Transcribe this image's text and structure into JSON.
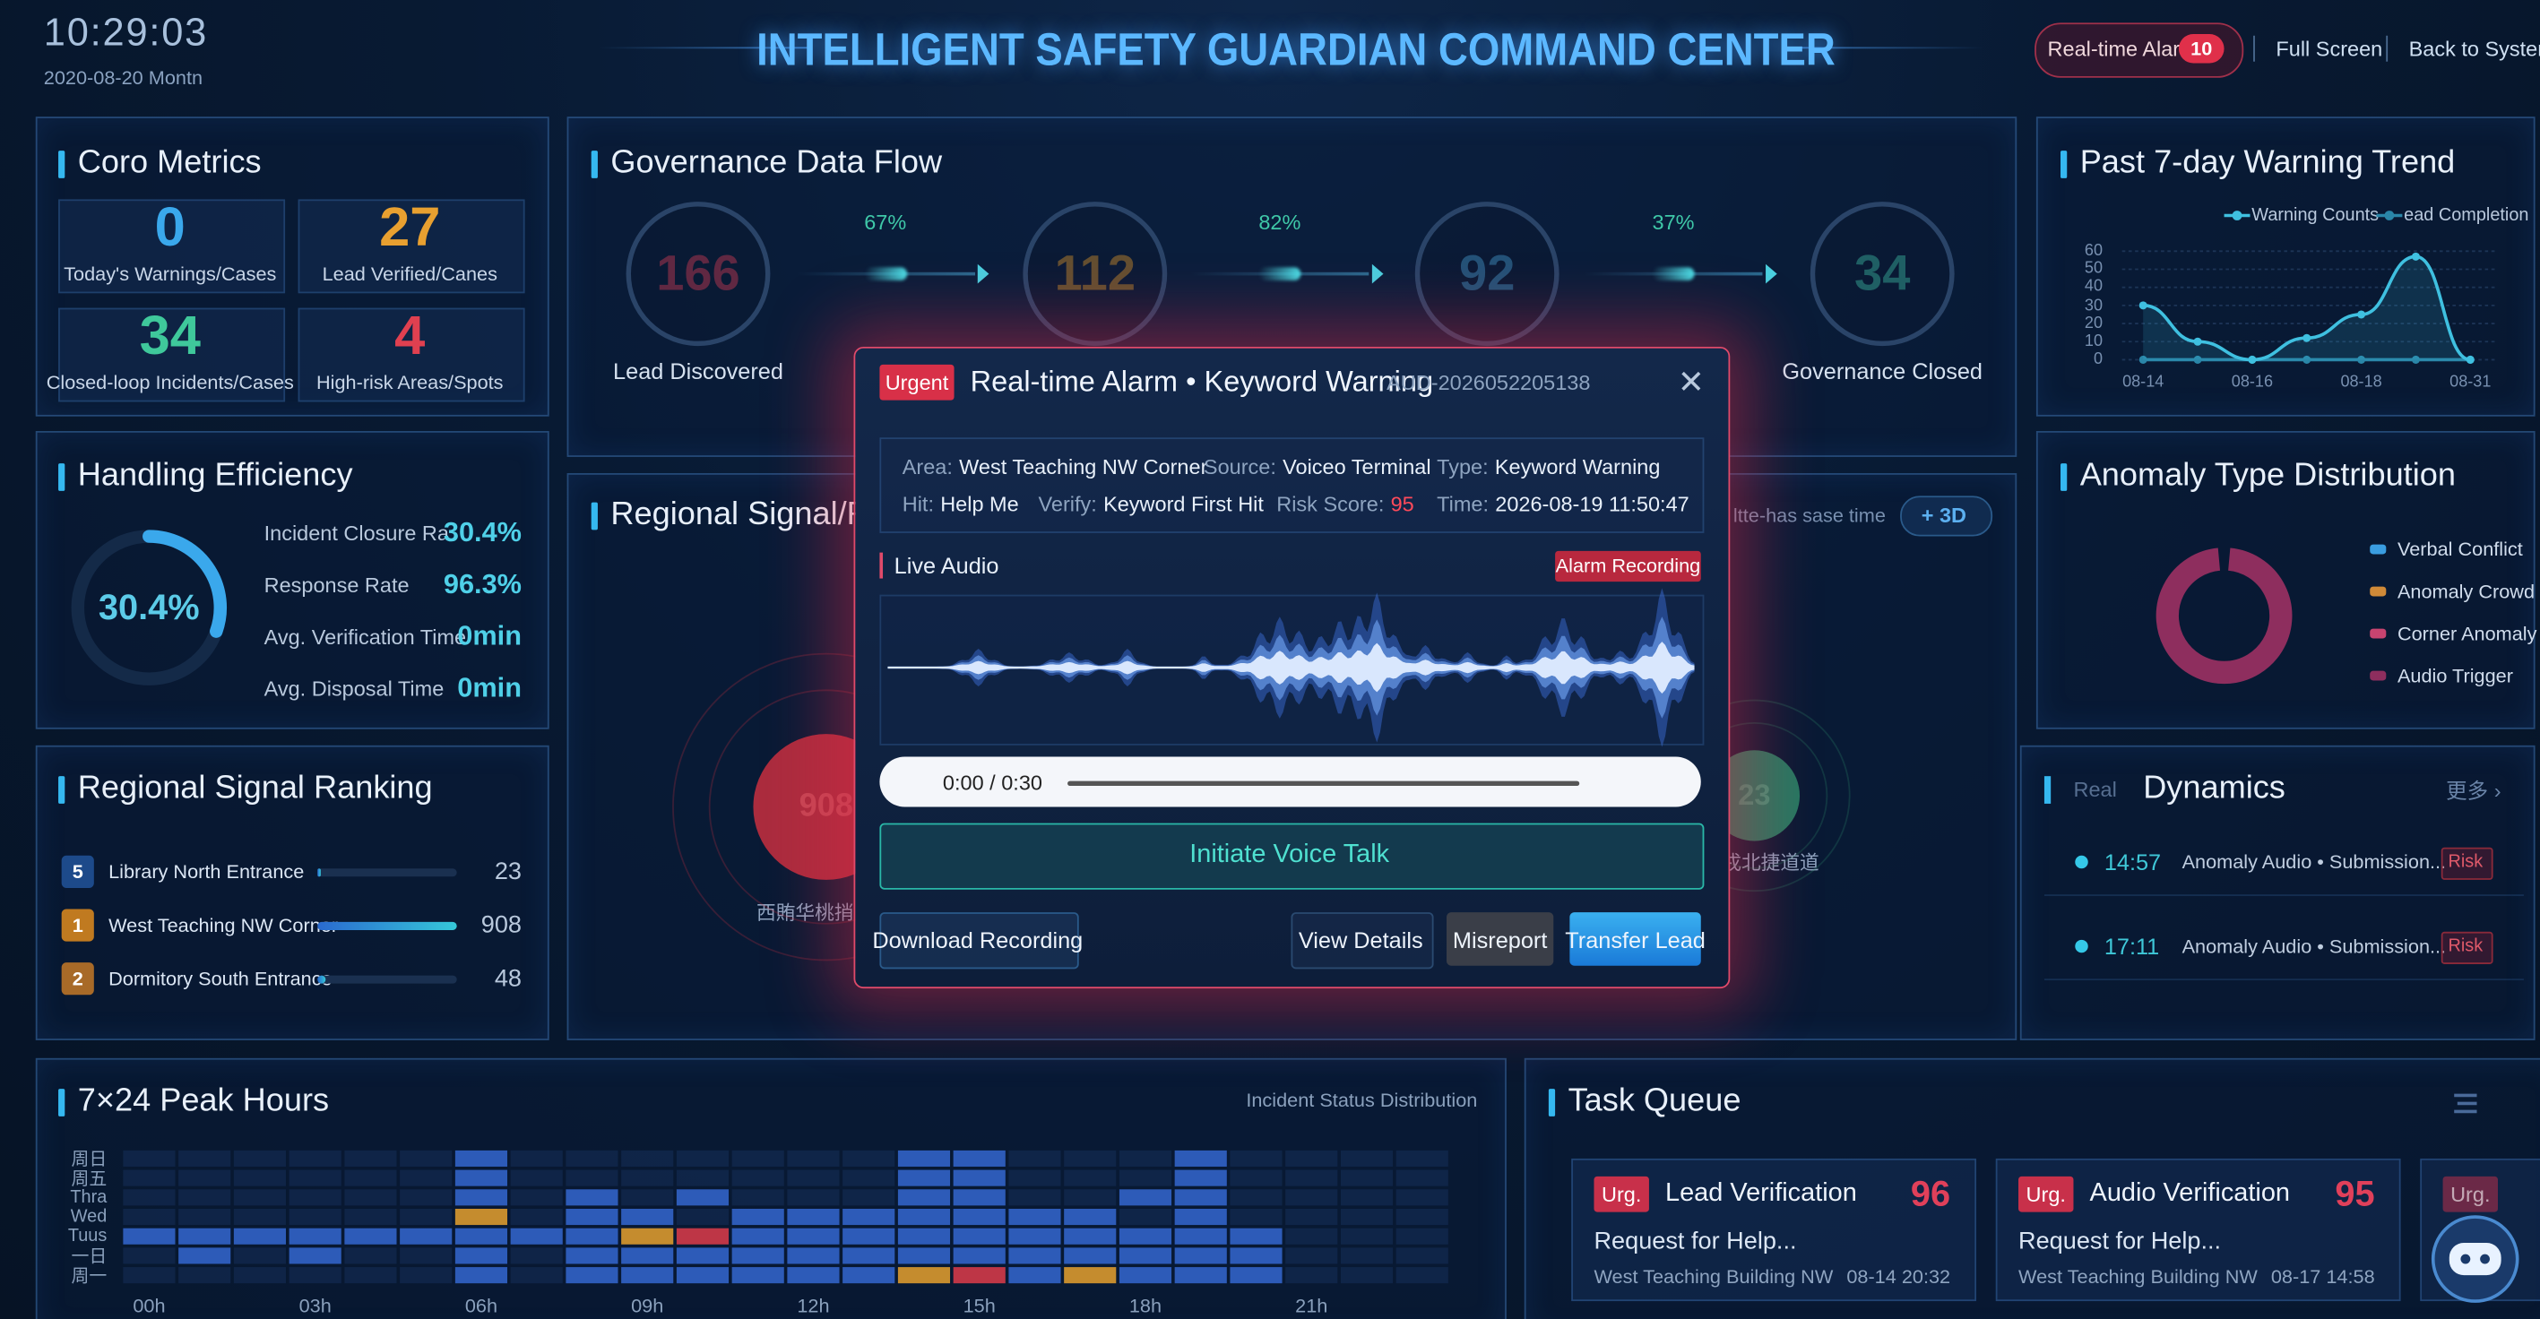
{
  "header": {
    "time": "10:29:03",
    "date": "2020-08-20 Montn",
    "title": "INTELLIGENT SAFETY GUARDIAN COMMAND CENTER",
    "alarm_button": "Real-time Alarm",
    "alarm_count": 10,
    "full_screen": "Full Screen",
    "back_to_system": "Back to System"
  },
  "core_metrics": {
    "title": "Coro Metrics",
    "items": [
      {
        "value": 0,
        "label": "Today's Warnings/Cases"
      },
      {
        "value": 27,
        "label": "Lead Verified/Canes"
      },
      {
        "value": 34,
        "label": "Closed-loop Incidents/Cases"
      },
      {
        "value": 4,
        "label": "High-risk Areas/Spots"
      }
    ]
  },
  "handling_efficiency": {
    "title": "Handling Efficiency",
    "gauge": {
      "value": 30.4,
      "label": "30.4%"
    },
    "rows": [
      {
        "label": "Incident Closure Ra",
        "value": "30.4%"
      },
      {
        "label": "Response Rate",
        "value": "96.3%"
      },
      {
        "label": "Avg. Verification Time",
        "value": "0min"
      },
      {
        "label": "Avg. Disposal Time",
        "value": "0min"
      }
    ]
  },
  "regional_ranking": {
    "title": "Regional Signal Ranking",
    "rows": [
      {
        "rank": 5,
        "name": "Library North Entrance",
        "value": 23
      },
      {
        "rank": 1,
        "name": "West Teaching NW Corner",
        "value": 908
      },
      {
        "rank": 2,
        "name": "Dormitory South Entrance",
        "value": 48
      }
    ]
  },
  "governance_flow": {
    "title": "Governance Data Flow",
    "stages": [
      {
        "value": 166,
        "label": "Lead Discovered"
      },
      {
        "value": 112
      },
      {
        "value": 92
      },
      {
        "value": 34,
        "label": "Governance Closed"
      }
    ],
    "rates": [
      "67%",
      "82%",
      "37%"
    ]
  },
  "regional_map": {
    "title": "Regional Signal/Ran",
    "note": "ltte-has sase time",
    "mode_button": "+ 3D",
    "spots": [
      {
        "value": 908,
        "label": "西賄华桃捎"
      },
      {
        "value": 23,
        "label": "戎北捷道道"
      }
    ]
  },
  "trend_chart": {
    "type": "line",
    "title": "Past 7-day Warning Trend",
    "categories": [
      "08-14",
      null,
      "08-16",
      null,
      "08-18",
      null,
      "08-31"
    ],
    "series": [
      {
        "name": "Warning Counts",
        "color": "#3fc0e0",
        "values": [
          30,
          10,
          0,
          12,
          25,
          57,
          0
        ]
      },
      {
        "name": "ead Completion",
        "color": "#2a86a8",
        "values": [
          0,
          0,
          0,
          0,
          0,
          0,
          0
        ]
      }
    ],
    "ylim": [
      0,
      60
    ],
    "yticks": [
      0,
      10,
      20,
      30,
      40,
      50,
      60
    ],
    "grid": true
  },
  "anomaly_chart": {
    "type": "pie",
    "title": "Anomaly Type Distribution",
    "categories": [
      "Verbal Conflict",
      "Anomaly Crowd",
      "Corner Anomaly",
      "Audio Trigger"
    ],
    "colors": [
      "#3a9de0",
      "#d08a38",
      "#c84470",
      "#8e2e5e"
    ],
    "values": [
      0,
      0,
      0,
      100
    ]
  },
  "dynamics": {
    "title_prefix": "Real",
    "title": "Dynamics",
    "more": "更多 ›",
    "items": [
      {
        "time": "14:57",
        "text": "Anomaly Audio • Submission...",
        "tag": "Risk"
      },
      {
        "time": "17:11",
        "text": "Anomaly Audio • Submission...",
        "tag": "Risk"
      }
    ]
  },
  "peak_hours": {
    "type": "heatmap",
    "title": "7×24 Peak Hours",
    "subtitle": "Incident Status Distribution",
    "rows": [
      "周日",
      "周五",
      "Thra",
      "Wed",
      "Tuus",
      "一日",
      "周一"
    ],
    "categories": [
      "00h",
      null,
      null,
      "03h",
      null,
      null,
      "06h",
      null,
      null,
      "09h",
      null,
      null,
      "12h",
      null,
      null,
      "15h",
      null,
      null,
      "18h",
      null,
      null,
      "21h",
      null,
      null
    ],
    "colors": [
      "#15305a",
      "#2f5fc0",
      "#d0922e",
      "#c83848"
    ],
    "values": [
      [
        0,
        0,
        0,
        0,
        0,
        0,
        1,
        0,
        0,
        0,
        0,
        0,
        0,
        0,
        1,
        1,
        0,
        0,
        0,
        1,
        0,
        0,
        0,
        0
      ],
      [
        0,
        0,
        0,
        0,
        0,
        0,
        1,
        0,
        0,
        0,
        0,
        0,
        0,
        0,
        1,
        1,
        0,
        0,
        0,
        1,
        0,
        0,
        0,
        0
      ],
      [
        0,
        0,
        0,
        0,
        0,
        0,
        1,
        0,
        1,
        0,
        1,
        0,
        0,
        0,
        1,
        1,
        0,
        0,
        1,
        1,
        0,
        0,
        0,
        0
      ],
      [
        0,
        0,
        0,
        0,
        0,
        0,
        2,
        0,
        1,
        1,
        0,
        1,
        1,
        1,
        1,
        1,
        1,
        1,
        0,
        1,
        0,
        0,
        0,
        0
      ],
      [
        1,
        1,
        1,
        1,
        1,
        1,
        1,
        1,
        1,
        2,
        3,
        1,
        1,
        1,
        1,
        1,
        1,
        1,
        1,
        1,
        1,
        0,
        0,
        0
      ],
      [
        0,
        1,
        0,
        1,
        0,
        0,
        1,
        0,
        1,
        1,
        1,
        1,
        1,
        1,
        1,
        1,
        1,
        1,
        1,
        1,
        1,
        0,
        0,
        0
      ],
      [
        0,
        0,
        0,
        0,
        0,
        0,
        1,
        0,
        1,
        1,
        1,
        1,
        1,
        1,
        2,
        3,
        1,
        2,
        1,
        1,
        1,
        0,
        0,
        0
      ]
    ]
  },
  "task_queue": {
    "title": "Task Queue",
    "cards": [
      {
        "tag": "Urg.",
        "title": "Lead Verification",
        "score": 96,
        "summary": "Request for Help...",
        "location": "West Teaching Building NW",
        "time": "08-14 20:32"
      },
      {
        "tag": "Urg.",
        "title": "Audio Verification",
        "score": 95,
        "summary": "Request for Help...",
        "location": "West Teaching Building NW",
        "time": "08-17 14:58"
      }
    ],
    "next_tag": "Urg."
  },
  "alarm_modal": {
    "tag": "Urgent",
    "title": "Real-time Alarm • Keyword Warning",
    "id": "AUD-2026052205138",
    "fields": [
      {
        "label": "Area:",
        "value": "West Teaching NW Corner"
      },
      {
        "label": "Source:",
        "value": "Voiceo Terminal"
      },
      {
        "label": "Type:",
        "value": "Keyword Warning"
      },
      {
        "label": "Hit:",
        "value": "Help Me"
      },
      {
        "label": "Verify:",
        "value": "Keyword First Hit"
      },
      {
        "label": "Risk Score:",
        "value": 95
      },
      {
        "label": "Time:",
        "value": "2026-08-19 11:50:47"
      }
    ],
    "audio_title": "Live Audio",
    "recording_tag": "Alarm Recording",
    "player_time": "0:00 / 0:30",
    "voice_talk": "Initiate Voice Talk",
    "actions": [
      "Download Recording",
      "View Details",
      "Misreport",
      "Transfer Lead"
    ]
  }
}
